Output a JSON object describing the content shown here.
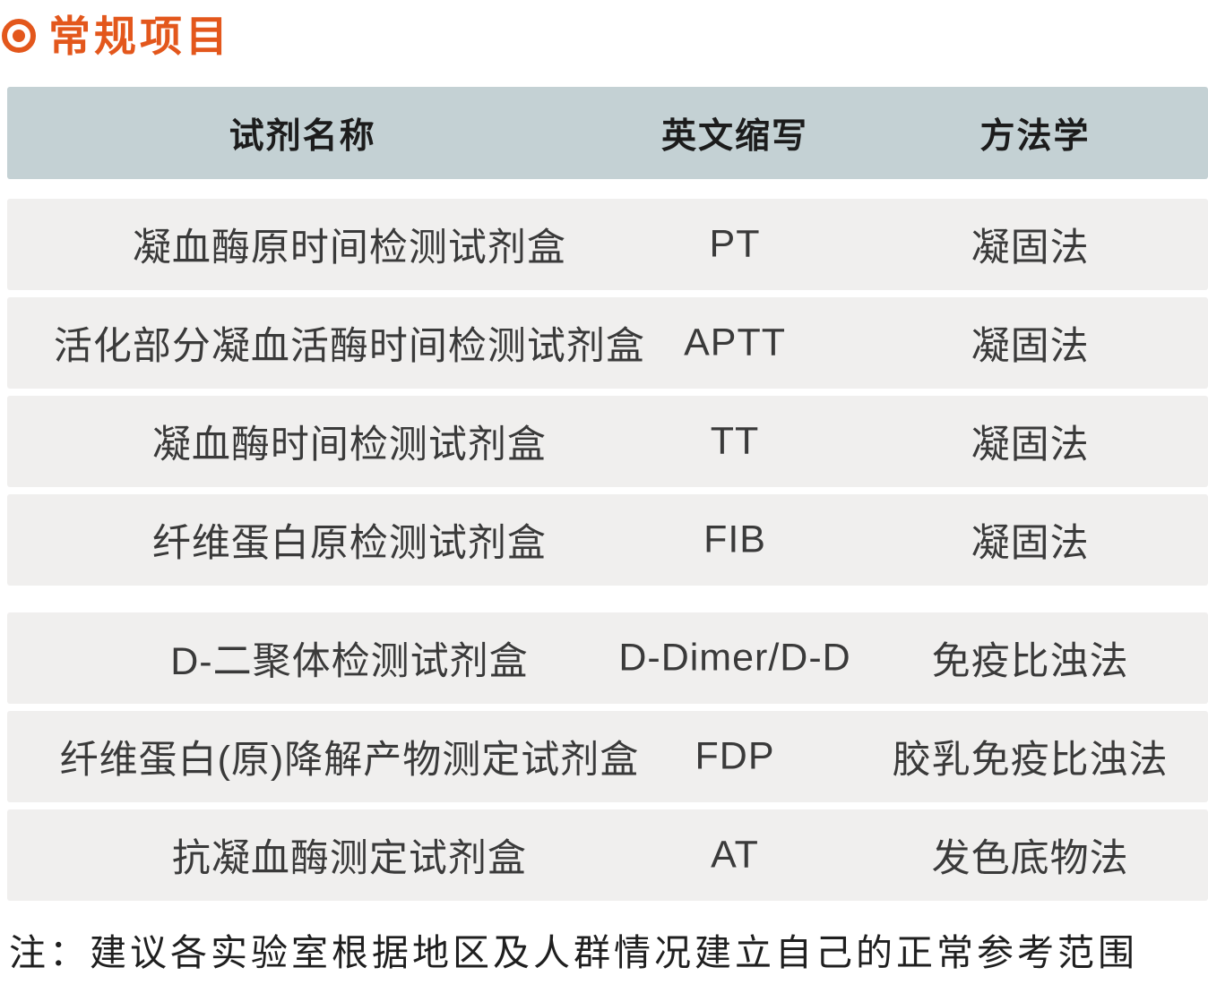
{
  "page": {
    "title": "常规项目",
    "note": "注：建议各实验室根据地区及人群情况建立自己的正常参考范围"
  },
  "colors": {
    "accent_orange": "#E3571C",
    "header_bg": "#C4D1D4",
    "row_bg": "#F0EFEE"
  },
  "table": {
    "columns": {
      "name": "试剂名称",
      "abbr": "英文缩写",
      "method": "方法学"
    },
    "groups": [
      {
        "rows": [
          {
            "name": "凝血酶原时间检测试剂盒",
            "abbr": "PT",
            "method": "凝固法"
          },
          {
            "name": "活化部分凝血活酶时间检测试剂盒",
            "abbr": "APTT",
            "method": "凝固法"
          },
          {
            "name": "凝血酶时间检测试剂盒",
            "abbr": "TT",
            "method": "凝固法"
          },
          {
            "name": "纤维蛋白原检测试剂盒",
            "abbr": "FIB",
            "method": "凝固法"
          }
        ]
      },
      {
        "rows": [
          {
            "name": "D-二聚体检测试剂盒",
            "abbr": "D-Dimer/D-D",
            "method": "免疫比浊法"
          },
          {
            "name": "纤维蛋白(原)降解产物测定试剂盒",
            "abbr": "FDP",
            "method": "胶乳免疫比浊法"
          },
          {
            "name": "抗凝血酶测定试剂盒",
            "abbr": "AT",
            "method": "发色底物法"
          }
        ]
      }
    ]
  }
}
